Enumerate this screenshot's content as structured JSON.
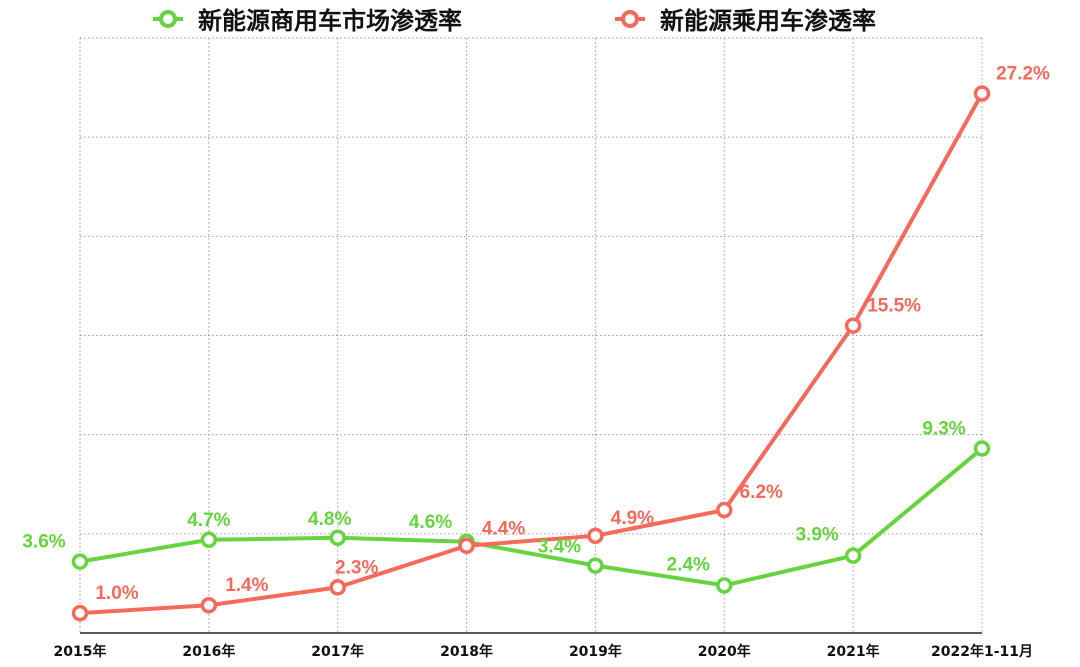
{
  "colors": {
    "commercial": "#66d43f",
    "passenger": "#f56a5b",
    "grid": "#9a9a9a",
    "axis": "#222222"
  },
  "chart_data": {
    "type": "line",
    "categories": [
      "2015年",
      "2016年",
      "2017年",
      "2018年",
      "2019年",
      "2020年",
      "2021年",
      "2022年1-11月"
    ],
    "series": [
      {
        "name": "新能源商用车市场渗透率",
        "color": "#66d43f",
        "values": [
          3.6,
          4.7,
          4.8,
          4.6,
          3.4,
          2.4,
          3.9,
          9.3
        ],
        "labels": [
          "3.6%",
          "4.7%",
          "4.8%",
          "4.6%",
          "3.4%",
          "2.4%",
          "3.9%",
          "9.3%"
        ]
      },
      {
        "name": "新能源乘用车渗透率",
        "color": "#f56a5b",
        "values": [
          1.0,
          1.4,
          2.3,
          4.4,
          4.9,
          6.2,
          15.5,
          27.2
        ],
        "labels": [
          "1.0%",
          "1.4%",
          "2.3%",
          "4.4%",
          "4.9%",
          "6.2%",
          "15.5%",
          "27.2%"
        ]
      }
    ],
    "ylim": [
      0,
      30
    ],
    "grid": true,
    "legend": "top"
  }
}
